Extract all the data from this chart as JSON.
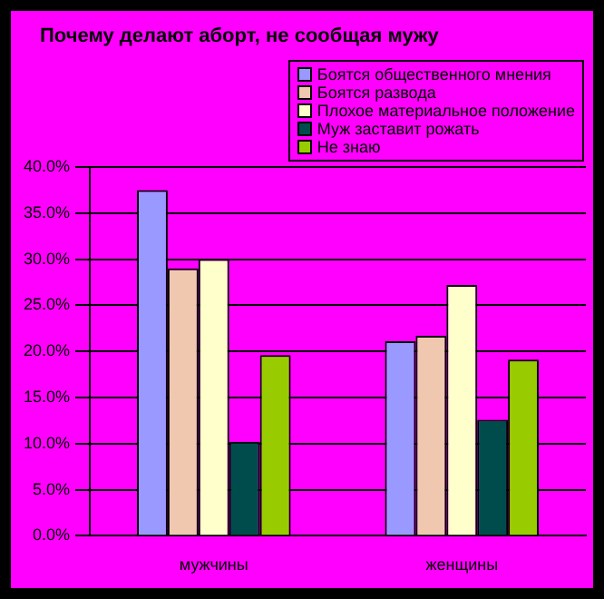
{
  "chart_data": {
    "type": "bar",
    "title": "Почему делают аборт, не сообщая мужу",
    "categories": [
      "мужчины",
      "женщины"
    ],
    "series": [
      {
        "name": "Боятся общественного мнения",
        "color": "#9999ff",
        "values": [
          37.5,
          21.1
        ]
      },
      {
        "name": "Боятся развода",
        "color": "#f0c8b0",
        "values": [
          29.0,
          21.7
        ]
      },
      {
        "name": "Плохое материальное положение",
        "color": "#ffffcc",
        "values": [
          30.0,
          27.2
        ]
      },
      {
        "name": "Муж заставит рожать",
        "color": "#004c4c",
        "values": [
          10.2,
          12.6
        ]
      },
      {
        "name": "Не знаю",
        "color": "#99cc00",
        "values": [
          19.6,
          19.1
        ]
      }
    ],
    "ylim": [
      0,
      40
    ],
    "yticks": [
      {
        "value": 0,
        "label": "0.0%"
      },
      {
        "value": 5,
        "label": "5.0%"
      },
      {
        "value": 10,
        "label": "10.0%"
      },
      {
        "value": 15,
        "label": "15.0%"
      },
      {
        "value": 20,
        "label": "20.0%"
      },
      {
        "value": 25,
        "label": "25.0%"
      },
      {
        "value": 30,
        "label": "30.0%"
      },
      {
        "value": 35,
        "label": "35.0%"
      },
      {
        "value": 40,
        "label": "40.0%"
      }
    ],
    "grid": "y",
    "legend": "top right"
  }
}
